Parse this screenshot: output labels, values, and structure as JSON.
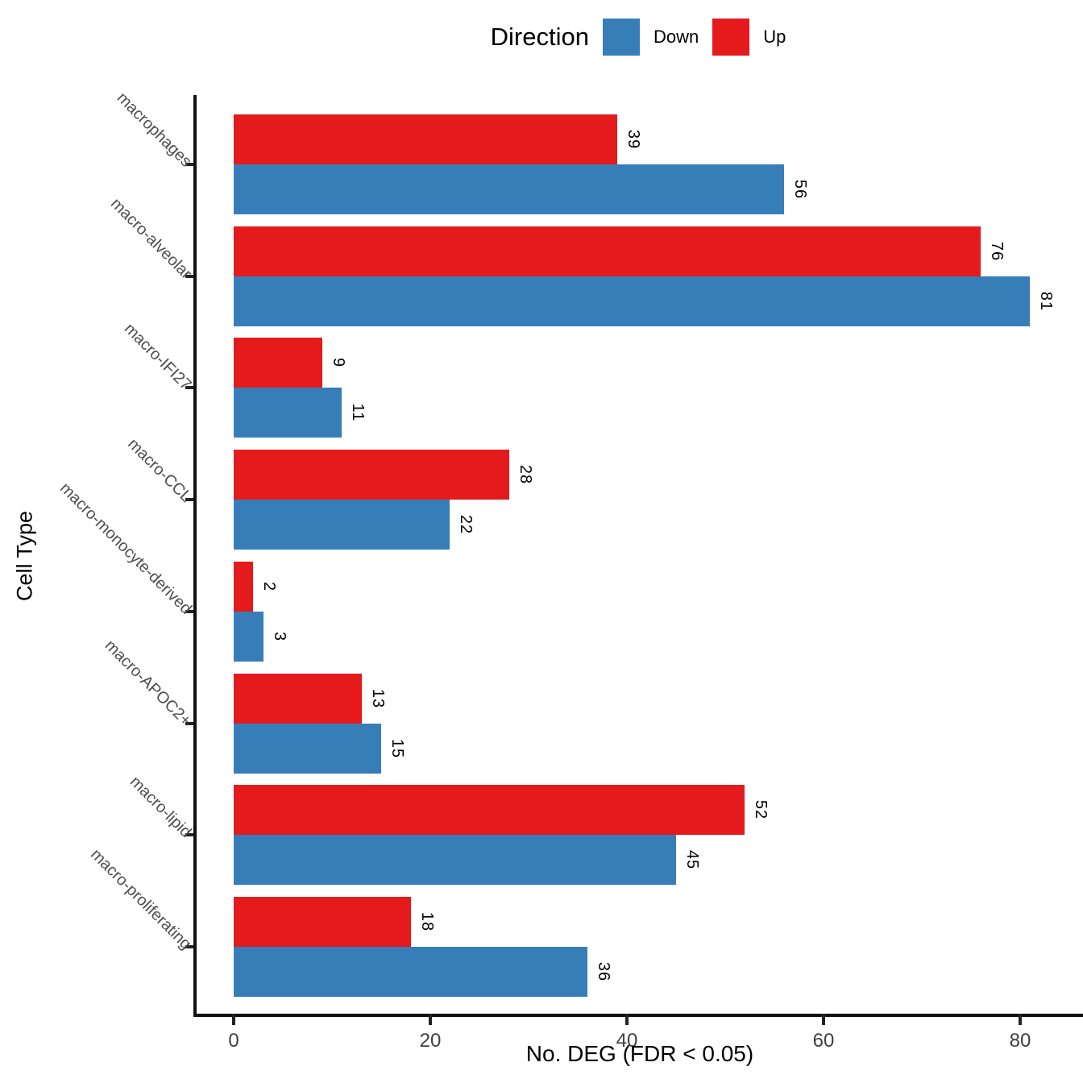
{
  "legend": {
    "title": "Direction",
    "items": [
      {
        "label": "Down",
        "color": "#377EB8"
      },
      {
        "label": "Up",
        "color": "#E41A1C"
      }
    ]
  },
  "axes": {
    "x_title": "No. DEG (FDR < 0.05)",
    "y_title": "Cell Type",
    "x_ticks": [
      0,
      20,
      40,
      60,
      80
    ]
  },
  "chart_data": {
    "type": "bar",
    "orientation": "horizontal",
    "title": "",
    "xlabel": "No. DEG (FDR < 0.05)",
    "ylabel": "Cell Type",
    "xlim": [
      0,
      86
    ],
    "grid": false,
    "legend_position": "top",
    "bar_label_rotation_deg": 90,
    "category_label_rotation_deg": 45,
    "categories": [
      "macrophages",
      "macro-alveolar",
      "macro-IFI27",
      "macro-CCL",
      "macro-monocyte-derived",
      "macro-APOC2+",
      "macro-lipid",
      "macro-proliferating"
    ],
    "series": [
      {
        "name": "Down",
        "color": "#377EB8",
        "values": [
          56,
          81,
          11,
          22,
          3,
          15,
          45,
          36
        ]
      },
      {
        "name": "Up",
        "color": "#E41A1C",
        "values": [
          39,
          76,
          9,
          28,
          2,
          13,
          52,
          18
        ]
      }
    ]
  }
}
